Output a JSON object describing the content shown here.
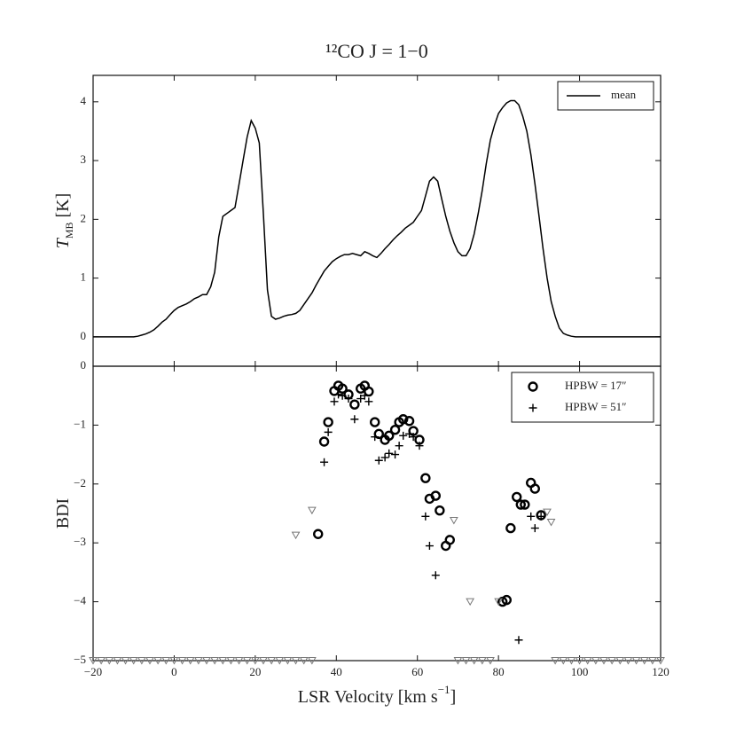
{
  "chart_data": [
    {
      "type": "line",
      "title": "¹²CO J = 1−0",
      "ylabel": "T",
      "ylabel_subscript": "MB",
      "ylabel_unit": "[K]",
      "xlim": [
        -20,
        120
      ],
      "ylim": [
        -0.5,
        4.45
      ],
      "yticks": [
        0,
        1,
        2,
        3,
        4
      ],
      "legend": "upper right",
      "x": [
        -20,
        -15,
        -10,
        -9,
        -8,
        -7,
        -6,
        -5,
        -4,
        -3,
        -2,
        -1,
        0,
        1,
        2,
        3,
        4,
        5,
        6,
        7,
        8,
        9,
        10,
        11,
        12,
        13,
        14,
        15,
        16,
        17,
        18,
        19,
        20,
        21,
        22,
        23,
        24,
        25,
        26,
        27,
        28,
        29,
        30,
        31,
        32,
        33,
        34,
        35,
        36,
        37,
        38,
        39,
        40,
        41,
        42,
        43,
        44,
        45,
        46,
        47,
        48,
        49,
        50,
        51,
        52,
        53,
        54,
        55,
        56,
        57,
        58,
        59,
        60,
        61,
        62,
        63,
        64,
        65,
        66,
        67,
        68,
        69,
        70,
        71,
        72,
        73,
        74,
        75,
        76,
        77,
        78,
        79,
        80,
        81,
        82,
        83,
        84,
        85,
        86,
        87,
        88,
        89,
        90,
        91,
        92,
        93,
        94,
        95,
        96,
        97,
        98,
        99,
        105,
        110,
        115,
        120
      ],
      "series": [
        {
          "name": "mean",
          "color": "#000000",
          "values": [
            0,
            0,
            0,
            0.01,
            0.03,
            0.05,
            0.08,
            0.12,
            0.18,
            0.25,
            0.3,
            0.38,
            0.45,
            0.5,
            0.53,
            0.56,
            0.6,
            0.65,
            0.68,
            0.72,
            0.72,
            0.85,
            1.1,
            1.7,
            2.05,
            2.1,
            2.15,
            2.2,
            2.6,
            3.0,
            3.4,
            3.68,
            3.55,
            3.3,
            2.1,
            0.8,
            0.35,
            0.3,
            0.32,
            0.35,
            0.37,
            0.38,
            0.4,
            0.45,
            0.55,
            0.65,
            0.75,
            0.88,
            1.0,
            1.12,
            1.2,
            1.28,
            1.33,
            1.37,
            1.4,
            1.4,
            1.42,
            1.4,
            1.38,
            1.45,
            1.42,
            1.38,
            1.35,
            1.42,
            1.5,
            1.57,
            1.65,
            1.72,
            1.78,
            1.85,
            1.9,
            1.95,
            2.05,
            2.15,
            2.4,
            2.65,
            2.72,
            2.65,
            2.35,
            2.05,
            1.8,
            1.6,
            1.45,
            1.38,
            1.38,
            1.5,
            1.75,
            2.1,
            2.5,
            2.95,
            3.35,
            3.6,
            3.8,
            3.9,
            3.98,
            4.02,
            4.02,
            3.95,
            3.75,
            3.5,
            3.1,
            2.6,
            2.05,
            1.5,
            1.0,
            0.6,
            0.35,
            0.15,
            0.06,
            0.03,
            0.01,
            0,
            0,
            0,
            0,
            0
          ]
        }
      ]
    },
    {
      "type": "scatter",
      "ylabel": "BDI",
      "xlabel": "LSR Velocity [km s",
      "xlabel_superscript": "−1",
      "xlabel_end": "]",
      "xlim": [
        -20,
        120
      ],
      "ylim": [
        -5,
        0
      ],
      "xticks": [
        {
          "value": -20,
          "label": "−20"
        },
        0,
        20,
        40,
        60,
        80,
        100,
        120
      ],
      "yticks": [
        {
          "value": -5,
          "label": "−5"
        },
        {
          "value": -4,
          "label": "−4"
        },
        {
          "value": -3,
          "label": "−3"
        },
        {
          "value": -2,
          "label": "−2"
        },
        {
          "value": -1,
          "label": "−1"
        },
        0
      ],
      "legend": "upper right",
      "series": [
        {
          "name": "HPBW = 17″",
          "color": "#000000",
          "marker": "circle",
          "x": [
            35.5,
            37,
            38,
            39.5,
            40.5,
            41.5,
            43,
            44.5,
            46,
            47,
            48,
            49.5,
            50.5,
            52,
            53,
            54.5,
            55.5,
            56.5,
            58,
            59,
            60.5,
            62,
            63,
            64.5,
            65.5,
            67,
            68,
            81,
            82,
            83,
            84.5,
            85.5,
            86.5,
            88,
            89,
            90.5
          ],
          "values": [
            -2.85,
            -1.28,
            -0.95,
            -0.42,
            -0.33,
            -0.38,
            -0.48,
            -0.65,
            -0.38,
            -0.33,
            -0.43,
            -0.95,
            -1.15,
            -1.25,
            -1.18,
            -1.08,
            -0.95,
            -0.9,
            -0.93,
            -1.1,
            -1.25,
            -1.9,
            -2.25,
            -2.2,
            -2.45,
            -3.05,
            -2.95,
            -4.0,
            -3.97,
            -2.75,
            -2.22,
            -2.35,
            -2.35,
            -1.98,
            -2.08,
            -2.53
          ]
        },
        {
          "name": "HPBW = 51″",
          "color": "#000000",
          "marker": "plus",
          "x": [
            37,
            38,
            39.5,
            40.5,
            41.5,
            43,
            44.5,
            46,
            47,
            48,
            49.5,
            50.5,
            52,
            53,
            54.5,
            55.5,
            56.5,
            58,
            59,
            60.5,
            62,
            63,
            64.5,
            85,
            88,
            89,
            90.5
          ],
          "values": [
            -1.63,
            -1.12,
            -0.6,
            -0.48,
            -0.5,
            -0.55,
            -0.9,
            -0.55,
            -0.5,
            -0.6,
            -1.2,
            -1.6,
            -1.55,
            -1.48,
            -1.5,
            -1.35,
            -1.18,
            -1.15,
            -1.2,
            -1.35,
            -2.55,
            -3.05,
            -3.55,
            -4.65,
            -2.55,
            -2.75,
            -2.55
          ]
        },
        {
          "color": "#777777",
          "marker": "triangle",
          "x": [
            -20,
            -18,
            -16,
            -14,
            -12,
            -10,
            -8,
            -6,
            -4,
            -2,
            0,
            2,
            4,
            6,
            8,
            10,
            12,
            14,
            16,
            18,
            20,
            22,
            24,
            26,
            28,
            30,
            32,
            34,
            30,
            34,
            69,
            73,
            80,
            92,
            93,
            70,
            72,
            74,
            76,
            78,
            94,
            96,
            98,
            100,
            102,
            104,
            106,
            108,
            110,
            112,
            114,
            116,
            118,
            120
          ],
          "values": [
            -5,
            -5,
            -5,
            -5,
            -5,
            -5,
            -5,
            -5,
            -5,
            -5,
            -5,
            -5,
            -5,
            -5,
            -5,
            -5,
            -5,
            -5,
            -5,
            -5,
            -5,
            -5,
            -5,
            -5,
            -5,
            -5,
            -5,
            -5,
            -2.87,
            -2.45,
            -2.62,
            -4.0,
            -4.0,
            -2.48,
            -2.65,
            -5,
            -5,
            -5,
            -5,
            -5,
            -5,
            -5,
            -5,
            -5,
            -5,
            -5,
            -5,
            -5,
            -5,
            -5,
            -5,
            -5,
            -5,
            -5
          ]
        }
      ]
    }
  ]
}
